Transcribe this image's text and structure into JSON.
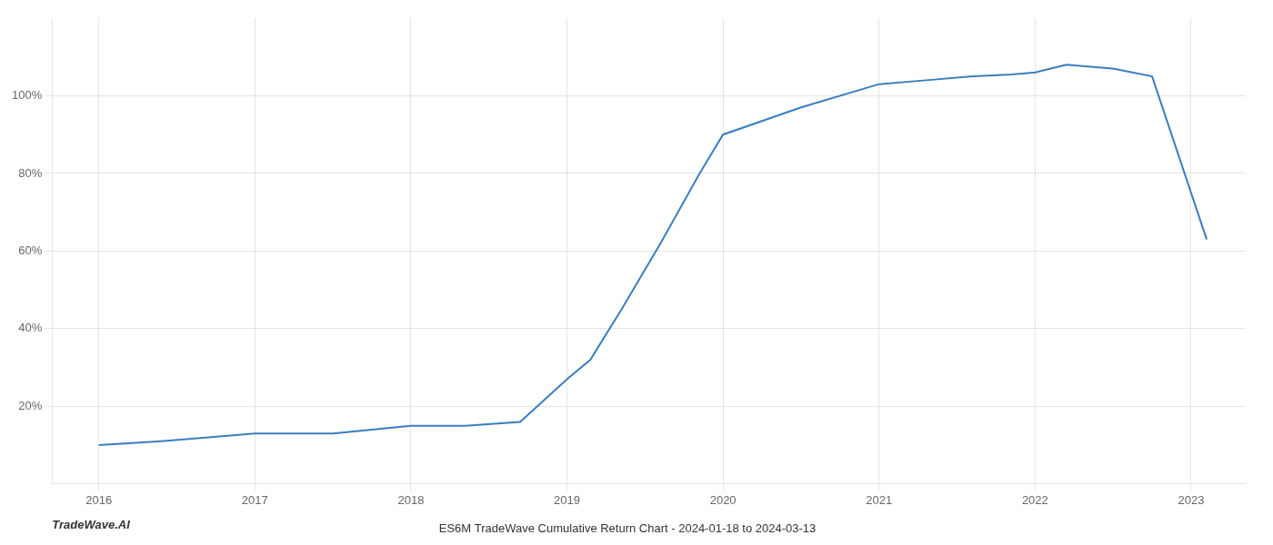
{
  "chart_data": {
    "type": "line",
    "title": "ES6M TradeWave Cumulative Return Chart - 2024-01-18 to 2024-03-13",
    "annotations": [
      "TradeWave.AI"
    ],
    "x": [
      2016.0,
      2016.4,
      2017.0,
      2017.5,
      2018.0,
      2018.35,
      2018.7,
      2019.0,
      2019.15,
      2019.35,
      2019.6,
      2019.85,
      2020.0,
      2020.5,
      2021.0,
      2021.3,
      2021.6,
      2021.85,
      2022.0,
      2022.2,
      2022.5,
      2022.75,
      2023.1
    ],
    "values": [
      10,
      11,
      13,
      13,
      15,
      15,
      16,
      27,
      32,
      45,
      62,
      80,
      90,
      97,
      103,
      104,
      105,
      105.5,
      106,
      108,
      107,
      105,
      63
    ],
    "color": "#3a7ebf",
    "xlim": [
      2015.7,
      2023.35
    ],
    "xticks": [
      2016,
      2017,
      2018,
      2019,
      2020,
      2021,
      2022,
      2023
    ],
    "ylim": [
      0,
      120
    ],
    "yticks": [
      {
        "value": 20,
        "label": "20%"
      },
      {
        "value": 40,
        "label": "40%"
      },
      {
        "value": 60,
        "label": "60%"
      },
      {
        "value": 80,
        "label": "80%"
      },
      {
        "value": 100,
        "label": "100%"
      }
    ],
    "grid": true
  }
}
